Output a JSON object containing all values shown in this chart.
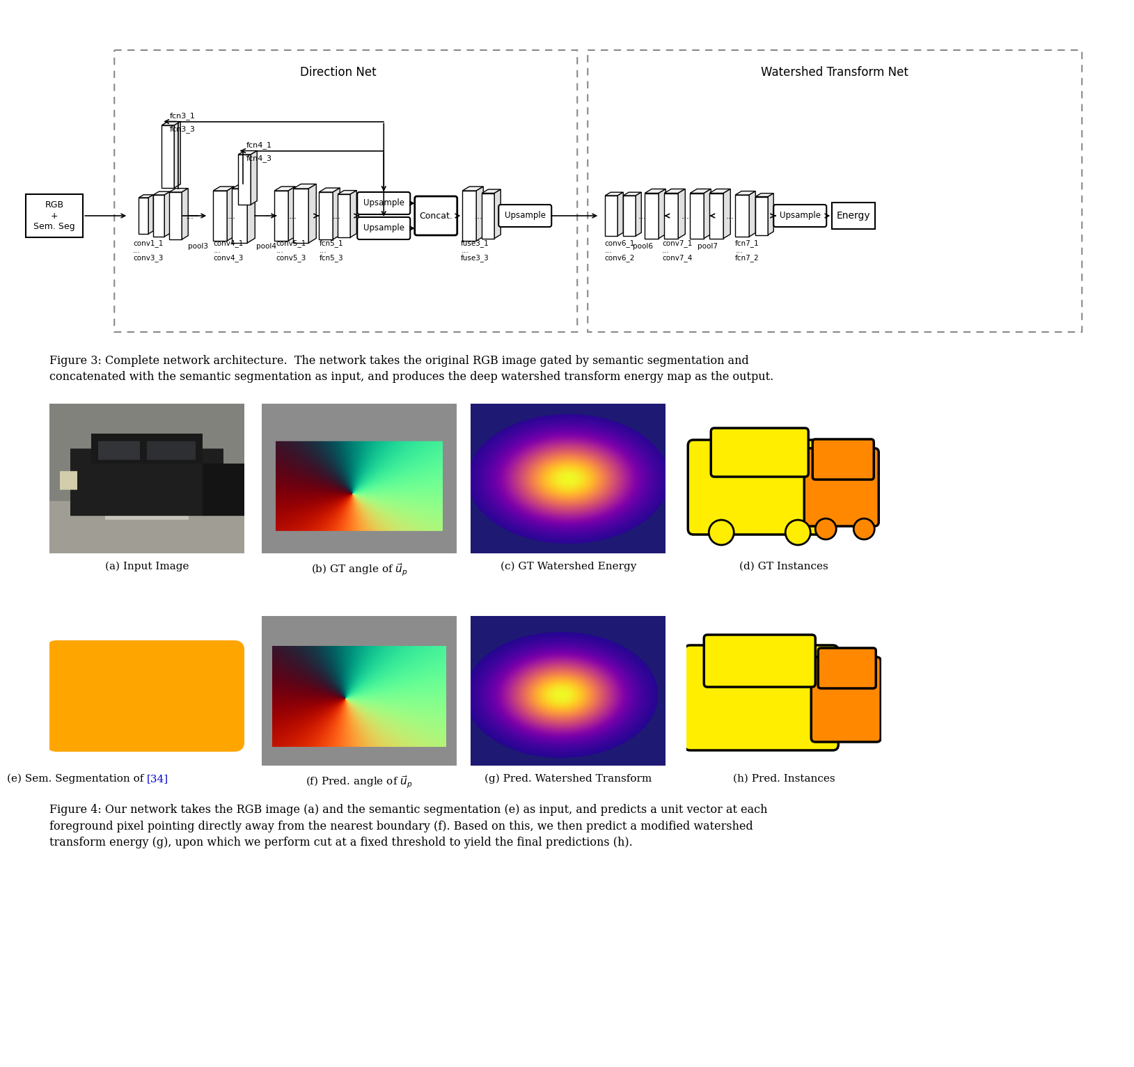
{
  "fig3_caption": "Figure 3: Complete network architecture.  The network takes the original RGB image gated by semantic segmentation and\nconcatenated with the semantic segmentation as input, and produces the deep watershed transform energy map as the output.",
  "fig4_caption": "Figure 4: Our network takes the RGB image (a) and the semantic segmentation (e) as input, and predicts a unit vector at each\nforeground pixel pointing directly away from the nearest boundary (f). Based on this, we then predict a modified watershed\ntransform energy (g), upon which we perform cut at a fixed threshold to yield the final predictions (h).",
  "sub_captions": [
    "(a) Input Image",
    "(b) GT angle of $\\vec{u}_p$",
    "(c) GT Watershed Energy",
    "(d) GT Instances",
    "(e) Sem. Segmentation of [34]",
    "(f) Pred. angle of $\\vec{u}_p$",
    "(g) Pred. Watershed Transform",
    "(h) Pred. Instances"
  ],
  "direction_net_label": "Direction Net",
  "watershed_net_label": "Watershed Transform Net",
  "input_label": "RGB\n+\nSem. Seg",
  "energy_label": "Energy",
  "bg_color": "#ffffff"
}
